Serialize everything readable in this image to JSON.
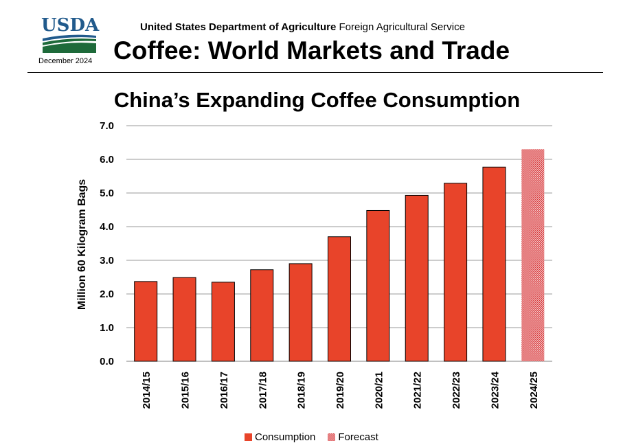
{
  "header": {
    "logo_text": "USDA",
    "date": "December 2024",
    "agency_bold": "United States Department of Agriculture",
    "agency_rest": " Foreign Agricultural Service",
    "report_title": "Coffee: World Markets and Trade"
  },
  "colors": {
    "consumption": "#e8442a",
    "forecast": "#d9383a",
    "grid": "#999999",
    "logo_blue": "#215a8c",
    "logo_green": "#1e6a3a"
  },
  "chart_data": {
    "type": "bar",
    "title": "China’s Expanding Coffee Consumption",
    "ylabel": "Million 60 Kilogram Bags",
    "xlabel": "",
    "ylim": [
      0,
      7
    ],
    "yticks": [
      "0.0",
      "1.0",
      "2.0",
      "3.0",
      "4.0",
      "5.0",
      "6.0",
      "7.0"
    ],
    "grid": true,
    "legend_position": "bottom",
    "categories": [
      "2014/15",
      "2015/16",
      "2016/17",
      "2017/18",
      "2018/19",
      "2019/20",
      "2020/21",
      "2021/22",
      "2022/23",
      "2023/24",
      "2024/25"
    ],
    "series": [
      {
        "name": "Consumption",
        "values": [
          2.37,
          2.49,
          2.35,
          2.72,
          2.9,
          3.7,
          4.48,
          4.93,
          5.29,
          5.77,
          null
        ]
      },
      {
        "name": "Forecast",
        "values": [
          null,
          null,
          null,
          null,
          null,
          null,
          null,
          null,
          null,
          null,
          6.3
        ]
      }
    ]
  }
}
